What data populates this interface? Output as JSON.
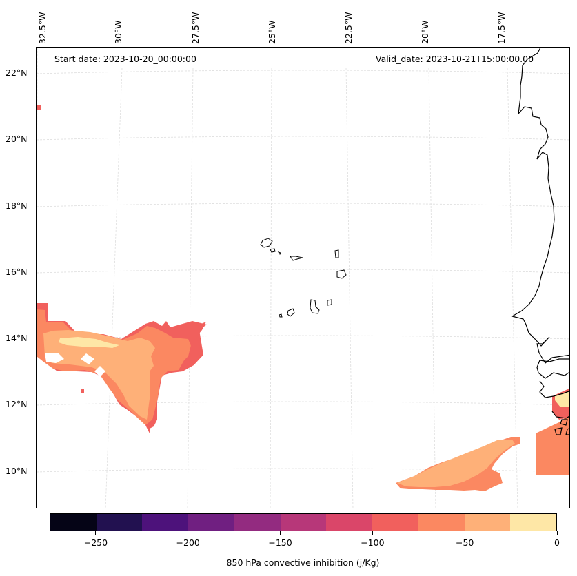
{
  "map": {
    "start_date": "Start date: 2023-10-20_00:00:00",
    "valid_date": "Valid_date: 2023-10-21T15:00:00.00",
    "longitude_labels": [
      "32.5°W",
      "30°W",
      "27.5°W",
      "25°W",
      "22.5°W",
      "20°W",
      "17.5°W"
    ],
    "latitude_labels": [
      "22°N",
      "20°N",
      "18°N",
      "16°N",
      "14°N",
      "12°N",
      "10°N"
    ],
    "islands": "Cape Verde islands",
    "coastline": "West African coast (Mauritania / Senegal / Gambia / Guinea-Bissau)",
    "gridline_color": "#dddddd"
  },
  "colorbar": {
    "label": "850 hPa convective inhibition (j/Kg)",
    "min": -275,
    "max": 0,
    "levels": [
      -275,
      -250,
      -225,
      -200,
      -175,
      -150,
      -125,
      -100,
      -75,
      -50,
      -25,
      0
    ],
    "tick_values": [
      -250,
      -200,
      -150,
      -100,
      -50,
      0
    ],
    "tick_labels": [
      "−250",
      "−200",
      "−150",
      "−100",
      "−50",
      "0"
    ],
    "colors": [
      "#050416",
      "#221150",
      "#4d127b",
      "#701f81",
      "#932b80",
      "#b73779",
      "#da4669",
      "#f1605d",
      "#fb8861",
      "#feb078",
      "#fee7a6"
    ]
  }
}
